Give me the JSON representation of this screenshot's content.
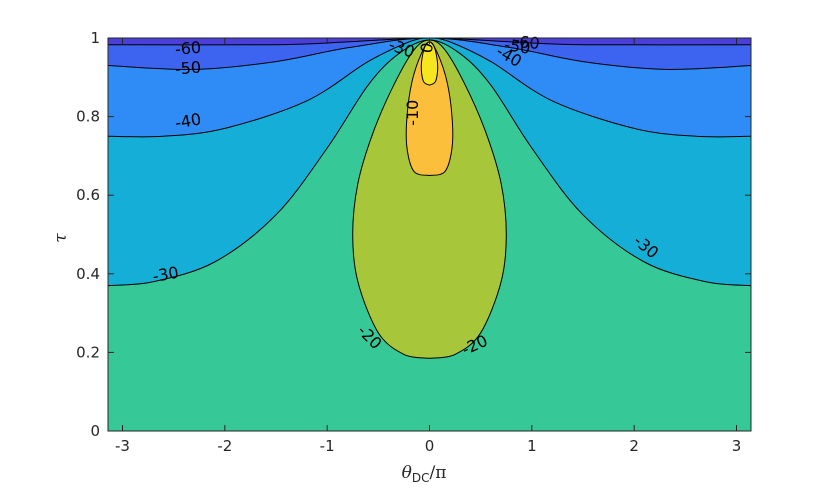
{
  "chart_data": {
    "type": "contour",
    "xlabel": "θ",
    "xlabel_subscript": "DC",
    "xlabel_suffix": "/π",
    "ylabel": "τ",
    "xlim": [
      -3.14159,
      3.14159
    ],
    "ylim": [
      0,
      1
    ],
    "x_ticks": [
      "-3",
      "-2",
      "-1",
      "0",
      "1",
      "2",
      "3"
    ],
    "y_ticks": [
      "0",
      "0.2",
      "0.4",
      "0.6",
      "0.8",
      "1"
    ],
    "levels": [
      -60,
      -50,
      -40,
      -30,
      -20,
      -10,
      0
    ],
    "level_colors": {
      "below_-60": "#4a3fd8",
      "-60_to_-50": "#3d64f0",
      "-50_to_-40": "#2f8cf6",
      "-40_to_-30": "#15aed7",
      "-30_to_-20": "#36c897",
      "-20_to_-10": "#a8c63a",
      "-10_to_0": "#fbbf3b",
      "above_0": "#f5e61f"
    },
    "contour_lines": [
      {
        "level": -60,
        "points": [
          [
            -3.14,
            0.983
          ],
          [
            -1.5,
            0.983
          ],
          [
            -0.8,
            0.99
          ],
          [
            0,
            1.0
          ],
          [
            0.8,
            0.99
          ],
          [
            1.5,
            0.983
          ],
          [
            3.14,
            0.983
          ]
        ]
      },
      {
        "level": -50,
        "points": [
          [
            -3.14,
            0.93
          ],
          [
            -2.3,
            0.92
          ],
          [
            -1.5,
            0.94
          ],
          [
            -0.8,
            0.975
          ],
          [
            0,
            1.0
          ],
          [
            0.8,
            0.975
          ],
          [
            1.5,
            0.94
          ],
          [
            2.3,
            0.92
          ],
          [
            3.14,
            0.93
          ]
        ]
      },
      {
        "level": -40,
        "points": [
          [
            -3.14,
            0.75
          ],
          [
            -2.6,
            0.75
          ],
          [
            -2.0,
            0.77
          ],
          [
            -1.2,
            0.84
          ],
          [
            -0.6,
            0.94
          ],
          [
            -0.2,
            0.99
          ],
          [
            0,
            1.0
          ],
          [
            0.2,
            0.99
          ],
          [
            0.6,
            0.94
          ],
          [
            1.2,
            0.84
          ],
          [
            2.0,
            0.77
          ],
          [
            2.6,
            0.75
          ],
          [
            3.14,
            0.75
          ]
        ]
      },
      {
        "level": -30,
        "points": [
          [
            -3.14,
            0.37
          ],
          [
            -2.7,
            0.38
          ],
          [
            -2.1,
            0.43
          ],
          [
            -1.5,
            0.55
          ],
          [
            -1.0,
            0.72
          ],
          [
            -0.6,
            0.88
          ],
          [
            -0.3,
            0.96
          ],
          [
            0,
            0.995
          ],
          [
            0.3,
            0.96
          ],
          [
            0.6,
            0.88
          ],
          [
            1.0,
            0.72
          ],
          [
            1.5,
            0.55
          ],
          [
            2.1,
            0.43
          ],
          [
            2.7,
            0.38
          ],
          [
            3.14,
            0.37
          ]
        ]
      },
      {
        "level": -20,
        "points": [
          [
            0,
            0.185
          ],
          [
            -0.25,
            0.195
          ],
          [
            -0.5,
            0.25
          ],
          [
            -0.7,
            0.38
          ],
          [
            -0.75,
            0.5
          ],
          [
            -0.7,
            0.63
          ],
          [
            -0.55,
            0.76
          ],
          [
            -0.35,
            0.88
          ],
          [
            -0.15,
            0.97
          ],
          [
            0,
            0.995
          ],
          [
            0.15,
            0.97
          ],
          [
            0.35,
            0.88
          ],
          [
            0.55,
            0.76
          ],
          [
            0.7,
            0.63
          ],
          [
            0.75,
            0.5
          ],
          [
            0.7,
            0.38
          ],
          [
            0.5,
            0.25
          ],
          [
            0.25,
            0.195
          ],
          [
            0,
            0.185
          ]
        ]
      },
      {
        "level": -10,
        "points": [
          [
            0,
            0.65
          ],
          [
            -0.15,
            0.66
          ],
          [
            -0.22,
            0.72
          ],
          [
            -0.22,
            0.8
          ],
          [
            -0.17,
            0.89
          ],
          [
            -0.08,
            0.96
          ],
          [
            0,
            0.99
          ],
          [
            0.08,
            0.96
          ],
          [
            0.17,
            0.89
          ],
          [
            0.22,
            0.8
          ],
          [
            0.22,
            0.72
          ],
          [
            0.15,
            0.66
          ],
          [
            0,
            0.65
          ]
        ]
      },
      {
        "level": 0,
        "points": [
          [
            0,
            0.88
          ],
          [
            -0.06,
            0.89
          ],
          [
            -0.08,
            0.93
          ],
          [
            -0.05,
            0.975
          ],
          [
            0,
            0.99
          ],
          [
            0.05,
            0.975
          ],
          [
            0.08,
            0.93
          ],
          [
            0.06,
            0.89
          ],
          [
            0,
            0.88
          ]
        ]
      }
    ],
    "contour_labels": [
      {
        "text": "-60",
        "x": -2.36,
        "y": 0.975,
        "angle": -5
      },
      {
        "text": "-50",
        "x": -2.36,
        "y": 0.925,
        "angle": -5
      },
      {
        "text": "-40",
        "x": -2.36,
        "y": 0.79,
        "angle": -10
      },
      {
        "text": "-30",
        "x": -2.58,
        "y": 0.4,
        "angle": -10
      },
      {
        "text": "-30",
        "x": -0.27,
        "y": 0.975,
        "angle": 20
      },
      {
        "text": "-20",
        "x": -0.58,
        "y": 0.24,
        "angle": 45
      },
      {
        "text": "-20",
        "x": 0.44,
        "y": 0.22,
        "angle": -25
      },
      {
        "text": "-10",
        "x": -0.17,
        "y": 0.81,
        "angle": -90
      },
      {
        "text": "0",
        "x": -0.03,
        "y": 0.975,
        "angle": -80
      },
      {
        "text": "-40",
        "x": 0.78,
        "y": 0.955,
        "angle": 30
      },
      {
        "text": "-50",
        "x": 0.86,
        "y": 0.98,
        "angle": 10
      },
      {
        "text": "-60",
        "x": 0.95,
        "y": 0.99,
        "angle": 5
      },
      {
        "text": "-30",
        "x": 2.12,
        "y": 0.47,
        "angle": 40
      }
    ]
  }
}
